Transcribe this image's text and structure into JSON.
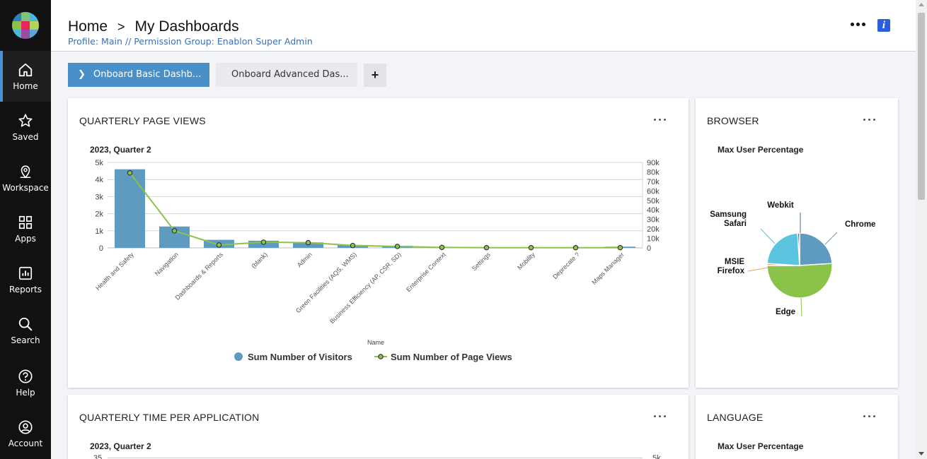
{
  "sidebar": {
    "items": [
      {
        "label": "Home",
        "icon": "home-icon"
      },
      {
        "label": "Saved",
        "icon": "star-icon"
      },
      {
        "label": "Workspace",
        "icon": "map-pin-icon"
      },
      {
        "label": "Apps",
        "icon": "apps-grid-icon"
      },
      {
        "label": "Reports",
        "icon": "bar-chart-icon"
      },
      {
        "label": "Search",
        "icon": "search-icon"
      },
      {
        "label": "Help",
        "icon": "help-icon"
      },
      {
        "label": "Account",
        "icon": "account-icon"
      }
    ],
    "active": "Home"
  },
  "header": {
    "crumb_home": "Home",
    "crumb_separator": ">",
    "crumb_current": "My Dashboards",
    "subtitle": "Profile: Main // Permission Group: Enablon Super Admin"
  },
  "tabs": {
    "active_label": "Onboard Basic Dashb...",
    "inactive_label": "Onboard Advanced Das...",
    "add_label": "+"
  },
  "cards": {
    "page_views": {
      "title": "QUARTERLY PAGE VIEWS",
      "subtitle": "2023, Quarter 2"
    },
    "browser": {
      "title": "BROWSER",
      "subtitle": "Max User Percentage"
    },
    "time_per_app": {
      "title": "QUARTERLY TIME PER APPLICATION",
      "subtitle": "2023, Quarter 2",
      "partial_left_tick": "35",
      "partial_right_tick": "5k"
    },
    "language": {
      "title": "LANGUAGE",
      "subtitle": "Max User Percentage"
    }
  },
  "colors": {
    "bar": "#5f9ac0",
    "line": "#8bc34a",
    "accent": "#4a90c8",
    "info": "#2b5ed8"
  },
  "chart_data": [
    {
      "type": "bar",
      "title": "2023, Quarter 2",
      "xlabel": "Name",
      "ylabel": "",
      "categories": [
        "Health and Safety",
        "Navigation",
        "Dashboards & Reports",
        "(blank)",
        "Admin",
        "Green Facilities (AQS, WMS)",
        "Business Efficiency (AP, CSR, SD)",
        "Enterprise Context",
        "Settings",
        "Mobility",
        "Deprecate ?",
        "Maps Manager"
      ],
      "series": [
        {
          "name": "Sum Number of Visitors",
          "type": "bar",
          "axis": "left",
          "values": [
            4600,
            1250,
            470,
            420,
            320,
            170,
            120,
            60,
            20,
            15,
            10,
            70
          ]
        },
        {
          "name": "Sum Number of Page Views",
          "type": "line",
          "axis": "right",
          "values": [
            79000,
            18000,
            3000,
            6000,
            5500,
            2500,
            1500,
            500,
            200,
            200,
            200,
            200
          ]
        }
      ],
      "ylim": [
        0,
        5000
      ],
      "y_ticks": [
        "0",
        "1k",
        "2k",
        "3k",
        "4k",
        "5k"
      ],
      "y2lim": [
        0,
        90000
      ],
      "y2_ticks": [
        "0",
        "10k",
        "20k",
        "30k",
        "40k",
        "50k",
        "60k",
        "70k",
        "80k",
        "90k"
      ],
      "grid": true,
      "legend": "bottom-center"
    },
    {
      "type": "pie",
      "title": "Max User Percentage",
      "labels": [
        "Chrome",
        "Edge",
        "MSIE Firefox",
        "Samsung Safari",
        "Webkit"
      ],
      "label_lines": [
        [
          "Chrome"
        ],
        [
          "Edge"
        ],
        [
          "MSIE",
          "Firefox"
        ],
        [
          "Samsung",
          "Safari"
        ],
        [
          "Webkit"
        ]
      ],
      "values": [
        24,
        51,
        1,
        23,
        1
      ],
      "colors": [
        "#5f9ac0",
        "#8bc34a",
        "#f0a050",
        "#5bc4de",
        "#4a6c8c"
      ],
      "legend": "none"
    }
  ]
}
